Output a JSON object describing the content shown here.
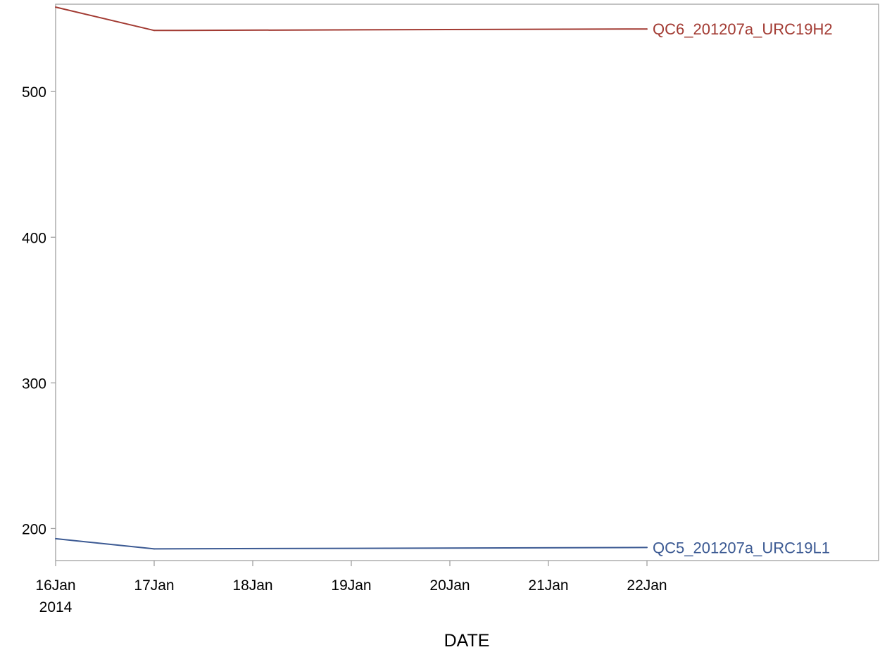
{
  "chart_data": {
    "type": "line",
    "xlabel": "DATE",
    "ylabel": "",
    "x_type": "date",
    "x": [
      "2014-01-16",
      "2014-01-17",
      "2014-01-22"
    ],
    "xlim": [
      "2014-01-16",
      "2014-01-24"
    ],
    "ylim": [
      178,
      560
    ],
    "y_ticks": [
      200,
      300,
      400,
      500
    ],
    "x_tick_dates": [
      "2014-01-16",
      "2014-01-17",
      "2014-01-18",
      "2014-01-19",
      "2014-01-20",
      "2014-01-21",
      "2014-01-22"
    ],
    "x_tick_labels": [
      "16Jan",
      "17Jan",
      "18Jan",
      "19Jan",
      "20Jan",
      "21Jan",
      "22Jan"
    ],
    "x_tick_year": "2014",
    "grid": false,
    "legend": "none",
    "series": [
      {
        "name": "QC6_201207a_URC19H2",
        "color": "#a23a32",
        "values": [
          558,
          542,
          543
        ]
      },
      {
        "name": "QC5_201207a_URC19L1",
        "color": "#3c5a93",
        "values": [
          193,
          186,
          187
        ]
      }
    ]
  }
}
